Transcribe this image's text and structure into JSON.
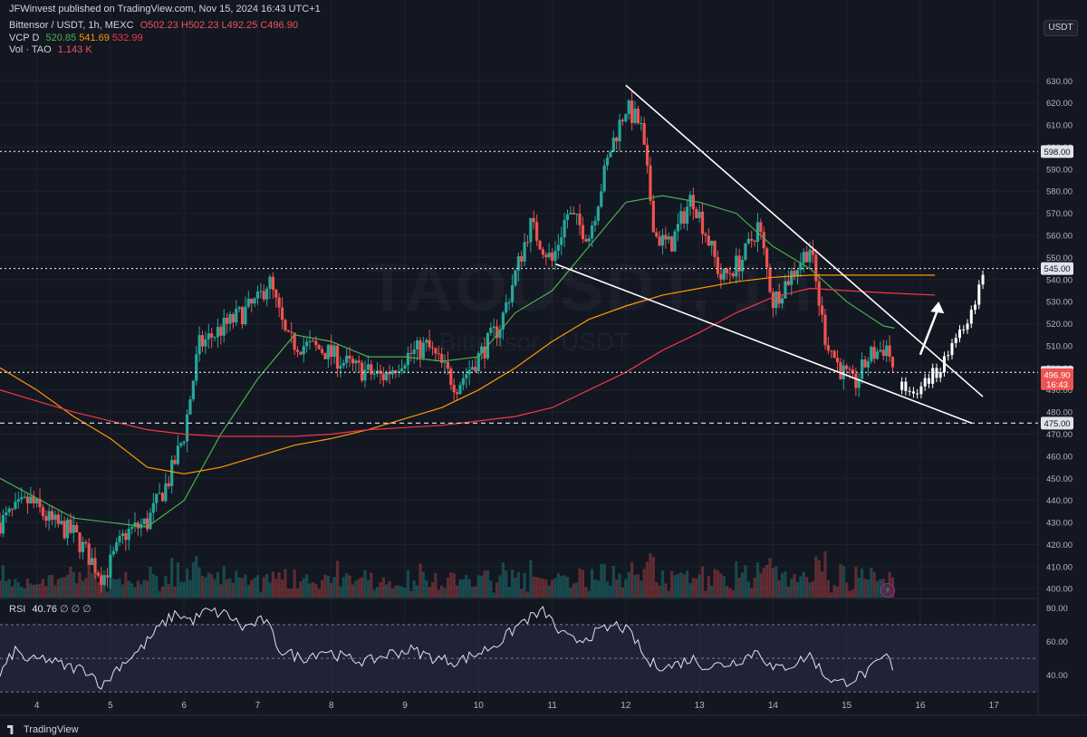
{
  "header": {
    "published": "JFWinvest published on TradingView.com, Nov 15, 2024 16:43 UTC+1",
    "symbol_line": "Bittensor / USDT, 1h, MEXC",
    "o": "O502.23",
    "h": "H502.23",
    "l": "L492.25",
    "c": "C496.90",
    "vcp_label": "VCP D",
    "vcp_1": "520.85",
    "vcp_2": "541.69",
    "vcp_3": "532.99",
    "vol_label": "Vol · TAO",
    "vol_value": "1.143 K"
  },
  "watermark": {
    "symbol": "TAOUSDT, 1h",
    "name": "Bittensor / USDT"
  },
  "currency": "USDT",
  "rsi_header": {
    "label": "RSI",
    "value": "40.76",
    "extra": "∅ ∅ ∅"
  },
  "footer_logo": "TradingView",
  "colors": {
    "bg": "#131722",
    "up": "#26a69a",
    "down": "#ef5350",
    "ma_green": "#4caf50",
    "ma_orange": "#ff9800",
    "ma_red": "#f23645",
    "rsi_line": "#e0e3eb",
    "rsi_band": "#2a2b47",
    "grid": "#1e222d"
  },
  "chart_data": [
    {
      "type": "candlestick",
      "title": "Bittensor / USDT, 1h, MEXC",
      "y_ticks": [
        400,
        410,
        420,
        430,
        440,
        450,
        460,
        470,
        480,
        490,
        500,
        510,
        520,
        530,
        540,
        550,
        560,
        570,
        580,
        590,
        600,
        610,
        620,
        630
      ],
      "ylim": [
        396,
        642
      ],
      "x_ticks": [
        "4",
        "5",
        "6",
        "7",
        "8",
        "9",
        "10",
        "11",
        "12",
        "13",
        "14",
        "15",
        "16",
        "17"
      ],
      "price_labels": [
        {
          "value": 598,
          "text": "598.00",
          "style": "dotted"
        },
        {
          "value": 545,
          "text": "545.00",
          "style": "dotted"
        },
        {
          "value": 498,
          "text": "498.00",
          "style": "dotted"
        },
        {
          "value": 475,
          "text": "475.00",
          "style": "dashed"
        }
      ],
      "last_price": {
        "value": 496.9,
        "text": "496.90",
        "time": "16:43"
      },
      "ohlc_path_keypoints": [
        {
          "x": 3.5,
          "y": 430
        },
        {
          "x": 3.9,
          "y": 440
        },
        {
          "x": 4.2,
          "y": 430
        },
        {
          "x": 4.5,
          "y": 425
        },
        {
          "x": 4.9,
          "y": 405
        },
        {
          "x": 5.2,
          "y": 425
        },
        {
          "x": 5.5,
          "y": 430
        },
        {
          "x": 5.8,
          "y": 450
        },
        {
          "x": 6.0,
          "y": 470
        },
        {
          "x": 6.2,
          "y": 510
        },
        {
          "x": 6.6,
          "y": 520
        },
        {
          "x": 7.0,
          "y": 530
        },
        {
          "x": 7.15,
          "y": 540
        },
        {
          "x": 7.4,
          "y": 512
        },
        {
          "x": 7.9,
          "y": 508
        },
        {
          "x": 8.3,
          "y": 500
        },
        {
          "x": 8.7,
          "y": 496
        },
        {
          "x": 9.0,
          "y": 505
        },
        {
          "x": 9.3,
          "y": 510
        },
        {
          "x": 9.7,
          "y": 492
        },
        {
          "x": 10.0,
          "y": 505
        },
        {
          "x": 10.3,
          "y": 520
        },
        {
          "x": 10.7,
          "y": 565
        },
        {
          "x": 11.0,
          "y": 548
        },
        {
          "x": 11.2,
          "y": 570
        },
        {
          "x": 11.5,
          "y": 560
        },
        {
          "x": 11.8,
          "y": 600
        },
        {
          "x": 12.0,
          "y": 618
        },
        {
          "x": 12.2,
          "y": 610
        },
        {
          "x": 12.4,
          "y": 560
        },
        {
          "x": 12.6,
          "y": 555
        },
        {
          "x": 12.9,
          "y": 578
        },
        {
          "x": 13.1,
          "y": 560
        },
        {
          "x": 13.3,
          "y": 540
        },
        {
          "x": 13.6,
          "y": 550
        },
        {
          "x": 13.8,
          "y": 565
        },
        {
          "x": 14.0,
          "y": 530
        },
        {
          "x": 14.3,
          "y": 545
        },
        {
          "x": 14.5,
          "y": 555
        },
        {
          "x": 14.7,
          "y": 515
        },
        {
          "x": 14.9,
          "y": 500
        },
        {
          "x": 15.1,
          "y": 492
        },
        {
          "x": 15.3,
          "y": 505
        },
        {
          "x": 15.55,
          "y": 510
        },
        {
          "x": 15.65,
          "y": 497
        }
      ],
      "moving_averages": [
        {
          "color_key": "ma_green",
          "points": [
            [
              3.5,
              450
            ],
            [
              4.5,
              432
            ],
            [
              5.5,
              428
            ],
            [
              6.0,
              440
            ],
            [
              6.5,
              470
            ],
            [
              7.0,
              495
            ],
            [
              7.5,
              515
            ],
            [
              8.0,
              512
            ],
            [
              8.5,
              505
            ],
            [
              9.0,
              505
            ],
            [
              9.5,
              503
            ],
            [
              10.0,
              505
            ],
            [
              10.5,
              525
            ],
            [
              11.0,
              535
            ],
            [
              11.5,
              555
            ],
            [
              12.0,
              575
            ],
            [
              12.5,
              578
            ],
            [
              13.0,
              575
            ],
            [
              13.5,
              570
            ],
            [
              14.0,
              555
            ],
            [
              14.5,
              545
            ],
            [
              15.0,
              530
            ],
            [
              15.5,
              519
            ],
            [
              15.65,
              518
            ]
          ]
        },
        {
          "color_key": "ma_orange",
          "points": [
            [
              3.5,
              500
            ],
            [
              4.0,
              490
            ],
            [
              4.5,
              478
            ],
            [
              5.0,
              468
            ],
            [
              5.5,
              455
            ],
            [
              6.0,
              452
            ],
            [
              6.5,
              455
            ],
            [
              7.0,
              460
            ],
            [
              7.5,
              465
            ],
            [
              8.0,
              468
            ],
            [
              8.5,
              472
            ],
            [
              9.0,
              477
            ],
            [
              9.5,
              482
            ],
            [
              10.0,
              490
            ],
            [
              10.5,
              500
            ],
            [
              11.0,
              512
            ],
            [
              11.5,
              522
            ],
            [
              12.0,
              528
            ],
            [
              12.5,
              533
            ],
            [
              13.0,
              536
            ],
            [
              13.5,
              539
            ],
            [
              14.0,
              541
            ],
            [
              14.5,
              542
            ],
            [
              15.0,
              542
            ],
            [
              15.5,
              542
            ],
            [
              16.2,
              542
            ]
          ]
        },
        {
          "color_key": "ma_red",
          "points": [
            [
              3.5,
              490
            ],
            [
              4.0,
              485
            ],
            [
              4.5,
              480
            ],
            [
              5.0,
              476
            ],
            [
              5.5,
              472
            ],
            [
              6.0,
              470
            ],
            [
              6.5,
              469
            ],
            [
              7.0,
              469
            ],
            [
              7.5,
              469
            ],
            [
              8.0,
              470
            ],
            [
              8.5,
              472
            ],
            [
              9.0,
              473
            ],
            [
              9.5,
              474
            ],
            [
              10.0,
              476
            ],
            [
              10.5,
              478
            ],
            [
              11.0,
              482
            ],
            [
              11.5,
              490
            ],
            [
              12.0,
              498
            ],
            [
              12.5,
              508
            ],
            [
              13.0,
              516
            ],
            [
              13.5,
              525
            ],
            [
              14.0,
              532
            ],
            [
              14.5,
              536
            ],
            [
              15.0,
              535
            ],
            [
              15.5,
              534
            ],
            [
              16.2,
              533
            ]
          ]
        }
      ],
      "trendlines": [
        {
          "from": [
            12.0,
            628
          ],
          "to": [
            16.85,
            487
          ]
        },
        {
          "from": [
            11.05,
            547
          ],
          "to": [
            16.7,
            475
          ]
        }
      ],
      "projection": {
        "from": [
          15.75,
          490
        ],
        "to": [
          16.85,
          541
        ]
      },
      "arrow": {
        "from": [
          16.0,
          506
        ],
        "to": [
          16.25,
          530
        ]
      }
    },
    {
      "type": "line",
      "title": "RSI",
      "yticks": [
        40,
        60,
        80
      ],
      "ylim": [
        28,
        85
      ],
      "band": [
        30,
        70
      ],
      "midline": 50,
      "keypoints": [
        [
          3.5,
          40
        ],
        [
          3.7,
          55
        ],
        [
          3.9,
          48
        ],
        [
          4.1,
          50
        ],
        [
          4.4,
          45
        ],
        [
          4.7,
          43
        ],
        [
          4.9,
          33
        ],
        [
          5.1,
          45
        ],
        [
          5.4,
          55
        ],
        [
          5.7,
          70
        ],
        [
          5.9,
          77
        ],
        [
          6.1,
          72
        ],
        [
          6.3,
          78
        ],
        [
          6.6,
          76
        ],
        [
          6.8,
          68
        ],
        [
          7.1,
          73
        ],
        [
          7.3,
          55
        ],
        [
          7.6,
          50
        ],
        [
          7.9,
          55
        ],
        [
          8.2,
          50
        ],
        [
          8.5,
          48
        ],
        [
          8.8,
          53
        ],
        [
          9.1,
          55
        ],
        [
          9.4,
          50
        ],
        [
          9.7,
          48
        ],
        [
          10.0,
          53
        ],
        [
          10.3,
          60
        ],
        [
          10.6,
          72
        ],
        [
          10.9,
          78
        ],
        [
          11.1,
          65
        ],
        [
          11.3,
          60
        ],
        [
          11.6,
          65
        ],
        [
          11.9,
          70
        ],
        [
          12.1,
          63
        ],
        [
          12.3,
          47
        ],
        [
          12.6,
          45
        ],
        [
          12.9,
          50
        ],
        [
          13.1,
          45
        ],
        [
          13.4,
          47
        ],
        [
          13.6,
          50
        ],
        [
          13.8,
          55
        ],
        [
          14.0,
          43
        ],
        [
          14.3,
          47
        ],
        [
          14.5,
          52
        ],
        [
          14.7,
          40
        ],
        [
          14.9,
          35
        ],
        [
          15.1,
          38
        ],
        [
          15.3,
          42
        ],
        [
          15.55,
          52
        ],
        [
          15.65,
          40
        ]
      ]
    }
  ]
}
